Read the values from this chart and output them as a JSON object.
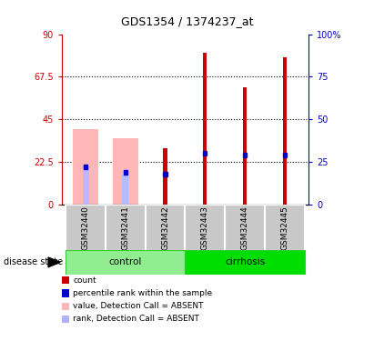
{
  "title": "GDS1354 / 1374237_at",
  "samples": [
    "GSM32440",
    "GSM32441",
    "GSM32442",
    "GSM32443",
    "GSM32444",
    "GSM32445"
  ],
  "red_bars": [
    0,
    0,
    30,
    80,
    62,
    78
  ],
  "pink_bars": [
    40,
    35,
    0,
    0,
    0,
    0
  ],
  "blue_bars": [
    20,
    17,
    16,
    27,
    26,
    26
  ],
  "light_blue_bars": [
    20,
    16,
    0,
    0,
    0,
    0
  ],
  "ylim_left": [
    0,
    90
  ],
  "ylim_right": [
    0,
    100
  ],
  "yticks_left": [
    0,
    22.5,
    45,
    67.5,
    90
  ],
  "yticks_right": [
    0,
    25,
    50,
    75,
    100
  ],
  "ytick_labels_left": [
    "0",
    "22.5",
    "45",
    "67.5",
    "90"
  ],
  "ytick_labels_right": [
    "0",
    "25",
    "50",
    "75",
    "100%"
  ],
  "left_axis_color": "#cc0000",
  "right_axis_color": "#0000cc",
  "control_color": "#90EE90",
  "cirrhosis_color": "#00dd00",
  "sample_bg_color": "#c8c8c8",
  "legend_colors": [
    "#cc0000",
    "#0000cc",
    "#ffb6b6",
    "#b0b0ff"
  ],
  "legend_labels": [
    "count",
    "percentile rank within the sample",
    "value, Detection Call = ABSENT",
    "rank, Detection Call = ABSENT"
  ]
}
